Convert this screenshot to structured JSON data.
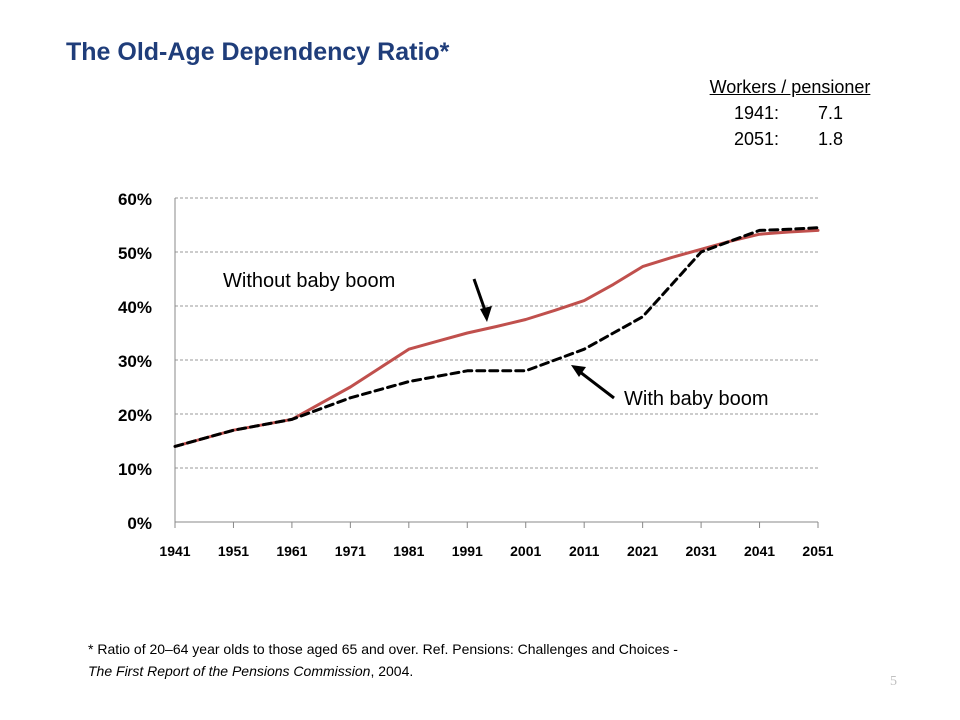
{
  "title": "The Old-Age Dependency Ratio*",
  "workers_box": {
    "heading": "Workers / pensioner",
    "rows": [
      {
        "year": "1941:",
        "value": "7.1"
      },
      {
        "year": "2051:",
        "value": "1.8"
      }
    ]
  },
  "chart_data": {
    "type": "line",
    "x": [
      1941,
      1946,
      1951,
      1956,
      1961,
      1966,
      1971,
      1976,
      1981,
      1986,
      1991,
      1996,
      2001,
      2006,
      2011,
      2016,
      2021,
      2026,
      2031,
      2036,
      2041,
      2046,
      2051
    ],
    "series": [
      {
        "name": "Without baby boom",
        "style": "solid",
        "color": "#c0504d",
        "values": [
          14,
          15.5,
          17,
          18,
          19,
          22,
          25,
          28.5,
          32,
          33.5,
          35,
          36.2,
          37.5,
          39.2,
          41,
          44,
          47.3,
          49,
          50.5,
          52,
          53.3,
          53.7,
          54
        ]
      },
      {
        "name": "With baby boom",
        "style": "dashed",
        "color": "#000000",
        "values": [
          14,
          15.5,
          17,
          18,
          19,
          21,
          23,
          24.5,
          26,
          27,
          28,
          28,
          28,
          30,
          32,
          35,
          38,
          44,
          50,
          52,
          54,
          54.2,
          54.5
        ]
      }
    ],
    "xticks": [
      "1941",
      "1951",
      "1961",
      "1971",
      "1981",
      "1991",
      "2001",
      "2011",
      "2021",
      "2031",
      "2041",
      "2051"
    ],
    "yticks": [
      "0%",
      "10%",
      "20%",
      "30%",
      "40%",
      "50%",
      "60%"
    ],
    "ylim": [
      0,
      60
    ],
    "grid": "horizontal dashed",
    "annotations": [
      {
        "text": "Without baby boom",
        "points_to": "Without baby boom"
      },
      {
        "text": "With baby boom",
        "points_to": "With baby boom"
      }
    ],
    "colors": {
      "grid": "#999999",
      "axis": "#888888",
      "text": "#000000"
    }
  },
  "footnote": {
    "line1": "* Ratio of 20–64 year olds to those aged 65 and over.  Ref. Pensions: Challenges and Choices -",
    "line2_italic": "The First Report of the Pensions Commission",
    "line2_rest": ", 2004."
  },
  "page_number": "5"
}
